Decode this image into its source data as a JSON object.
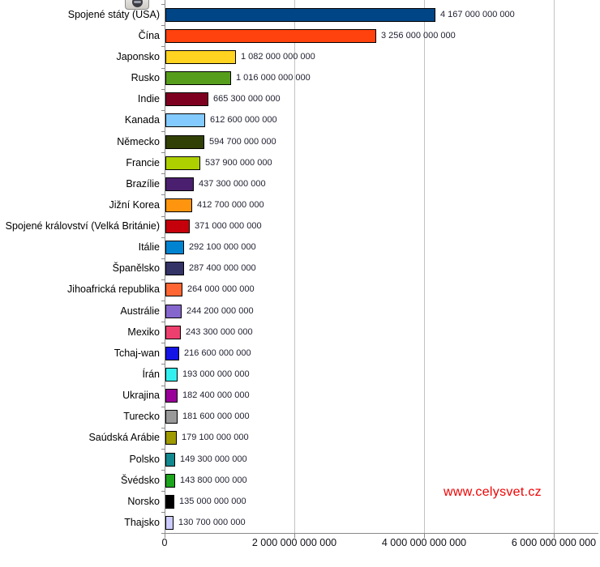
{
  "icon": {
    "name": "globe-icon",
    "tooltip": ""
  },
  "watermark": {
    "text": "www.celysvet.cz",
    "color": "#f00000"
  },
  "chart_data": {
    "type": "bar",
    "orientation": "horizontal",
    "title": "",
    "xlabel": "",
    "ylabel": "",
    "grid": true,
    "legend": false,
    "xlim": [
      0,
      6687500000000
    ],
    "x_ticks": [
      {
        "value": 0,
        "label": "0"
      },
      {
        "value": 2000000000000,
        "label": "2 000 000 000 000"
      },
      {
        "value": 4000000000000,
        "label": "4 000 000 000 000"
      },
      {
        "value": 6000000000000,
        "label": "6 000 000 000 000"
      }
    ],
    "categories": [
      "Spojené státy (USA)",
      "Čína",
      "Japonsko",
      "Rusko",
      "Indie",
      "Kanada",
      "Německo",
      "Francie",
      "Brazílie",
      "Jižní Korea",
      "Spojené království (Velká Británie)",
      "Itálie",
      "Španělsko",
      "Jihoafrická republika",
      "Austrálie",
      "Mexiko",
      "Tchaj-wan",
      "Írán",
      "Ukrajina",
      "Turecko",
      "Saúdská Arábie",
      "Polsko",
      "Švédsko",
      "Norsko",
      "Thajsko"
    ],
    "values": [
      4167000000000,
      3256000000000,
      1082000000000,
      1016000000000,
      665300000000,
      612600000000,
      594700000000,
      537900000000,
      437300000000,
      412700000000,
      371000000000,
      292100000000,
      287400000000,
      264000000000,
      244200000000,
      243300000000,
      216600000000,
      193000000000,
      182400000000,
      181600000000,
      179100000000,
      149300000000,
      143800000000,
      135000000000,
      130700000000
    ],
    "value_labels": [
      "4 167 000 000 000",
      "3 256 000 000 000",
      "1 082 000 000 000",
      "1 016 000 000 000",
      "665 300 000 000",
      "612 600 000 000",
      "594 700 000 000",
      "537 900 000 000",
      "437 300 000 000",
      "412 700 000 000",
      "371 000 000 000",
      "292 100 000 000",
      "287 400 000 000",
      "264 000 000 000",
      "244 200 000 000",
      "243 300 000 000",
      "216 600 000 000",
      "193 000 000 000",
      "182 400 000 000",
      "181 600 000 000",
      "179 100 000 000",
      "149 300 000 000",
      "143 800 000 000",
      "135 000 000 000",
      "130 700 000 000"
    ],
    "bar_colors": [
      "#004586",
      "#ff420e",
      "#ffd320",
      "#579d1c",
      "#7e0021",
      "#83caff",
      "#314004",
      "#aecf00",
      "#4b1f6f",
      "#ff950e",
      "#c5000b",
      "#0084d1",
      "#333366",
      "#ff6633",
      "#8566cc",
      "#ee406e",
      "#1414e6",
      "#33f0f0",
      "#990099",
      "#999999",
      "#9e9a00",
      "#11898e",
      "#1ca41c",
      "#000000",
      "#ccccff"
    ]
  }
}
